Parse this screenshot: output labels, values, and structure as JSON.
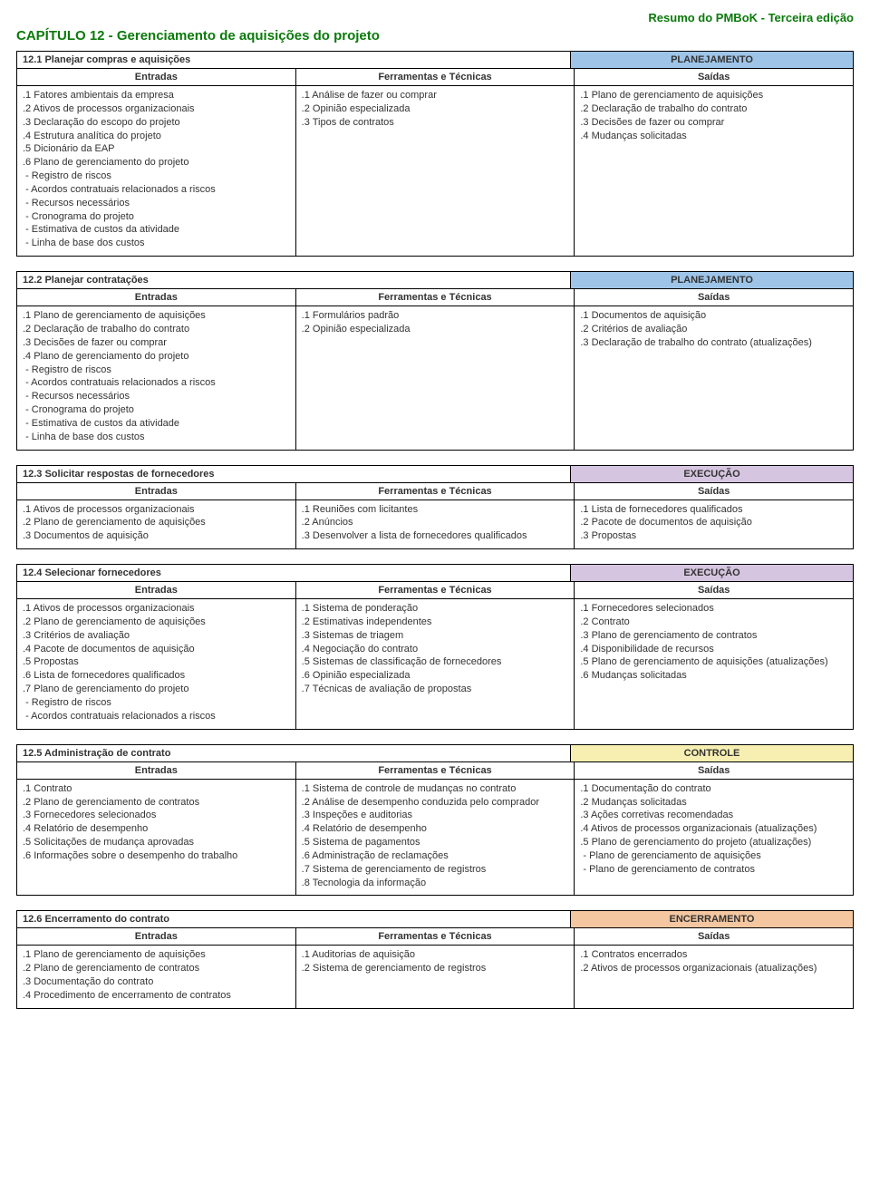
{
  "doc_header": "Resumo do PMBoK - Terceira edição",
  "chapter_title": "CAPÍTULO 12 - Gerenciamento de aquisições do projeto",
  "col_headers": {
    "c1": "Entradas",
    "c2": "Ferramentas e Técnicas",
    "c3": "Saídas"
  },
  "phase_colors": {
    "PLANEJAMENTO": "#9ec5e8",
    "EXECUÇÃO": "#d6c5e0",
    "CONTROLE": "#f7efb2",
    "ENCERRAMENTO": "#f4c7a0"
  },
  "processes": [
    {
      "title": "12.1 Planejar compras e aquisições",
      "phase": "PLANEJAMENTO",
      "entradas": [
        ".1 Fatores ambientais da empresa",
        ".2 Ativos de processos organizacionais",
        ".3 Declaração do escopo do projeto",
        ".4 Estrutura analítica do projeto",
        ".5 Dicionário da EAP",
        ".6 Plano de gerenciamento do projeto",
        " - Registro de riscos",
        " - Acordos contratuais relacionados a riscos",
        " - Recursos necessários",
        " - Cronograma do projeto",
        " - Estimativa de custos da atividade",
        " - Linha de base dos custos"
      ],
      "ferramentas": [
        ".1 Análise de fazer ou comprar",
        ".2 Opinião especializada",
        ".3 Tipos de contratos"
      ],
      "saidas": [
        ".1 Plano de gerenciamento de aquisições",
        ".2 Declaração de trabalho do contrato",
        ".3 Decisões de fazer ou comprar",
        ".4 Mudanças solicitadas"
      ]
    },
    {
      "title": "12.2 Planejar contratações",
      "phase": "PLANEJAMENTO",
      "entradas": [
        ".1 Plano de gerenciamento de aquisições",
        ".2 Declaração de trabalho do contrato",
        ".3 Decisões de fazer ou comprar",
        ".4 Plano de gerenciamento do projeto",
        " - Registro de riscos",
        " - Acordos contratuais relacionados a riscos",
        " - Recursos necessários",
        " - Cronograma do projeto",
        " - Estimativa de custos da atividade",
        " - Linha de base dos custos"
      ],
      "ferramentas": [
        ".1 Formulários padrão",
        ".2 Opinião especializada"
      ],
      "saidas": [
        ".1 Documentos de aquisição",
        ".2 Critérios de avaliação",
        ".3 Declaração de trabalho do contrato (atualizações)"
      ]
    },
    {
      "title": "12.3 Solicitar respostas de fornecedores",
      "phase": "EXECUÇÃO",
      "entradas": [
        ".1 Ativos de processos organizacionais",
        ".2 Plano de gerenciamento de aquisições",
        ".3 Documentos de aquisição"
      ],
      "ferramentas": [
        ".1 Reuniões com licitantes",
        ".2 Anúncios",
        ".3 Desenvolver a lista de fornecedores qualificados"
      ],
      "saidas": [
        ".1 Lista de fornecedores qualificados",
        ".2 Pacote de documentos de aquisição",
        ".3 Propostas"
      ]
    },
    {
      "title": "12.4 Selecionar fornecedores",
      "phase": "EXECUÇÃO",
      "entradas": [
        ".1 Ativos de processos organizacionais",
        ".2 Plano de gerenciamento de aquisições",
        ".3 Critérios de avaliação",
        ".4 Pacote de documentos de aquisição",
        ".5 Propostas",
        ".6 Lista de fornecedores qualificados",
        ".7 Plano de gerenciamento do projeto",
        " - Registro de riscos",
        " - Acordos contratuais relacionados a riscos"
      ],
      "ferramentas": [
        ".1 Sistema de ponderação",
        ".2 Estimativas independentes",
        ".3 Sistemas de triagem",
        ".4 Negociação do contrato",
        ".5 Sistemas de classificação de fornecedores",
        ".6 Opinião especializada",
        ".7 Técnicas de avaliação de propostas"
      ],
      "saidas": [
        ".1 Fornecedores selecionados",
        ".2 Contrato",
        ".3 Plano de gerenciamento de contratos",
        ".4 Disponibilidade de recursos",
        ".5 Plano de gerenciamento de aquisições (atualizações)",
        ".6 Mudanças solicitadas"
      ]
    },
    {
      "title": "12.5 Administração de contrato",
      "phase": "CONTROLE",
      "entradas": [
        ".1 Contrato",
        ".2 Plano de gerenciamento de contratos",
        ".3 Fornecedores selecionados",
        ".4 Relatório de desempenho",
        ".5 Solicitações de mudança aprovadas",
        ".6 Informações sobre o desempenho do trabalho"
      ],
      "ferramentas": [
        ".1 Sistema de controle de mudanças no contrato",
        ".2 Análise de desempenho conduzida pelo comprador",
        ".3 Inspeções e auditorias",
        ".4 Relatório de desempenho",
        ".5 Sistema de pagamentos",
        ".6 Administração de reclamações",
        ".7 Sistema de gerenciamento de registros",
        ".8 Tecnologia da informação"
      ],
      "saidas": [
        ".1 Documentação do contrato",
        ".2 Mudanças solicitadas",
        ".3 Ações corretivas recomendadas",
        ".4 Ativos de processos organizacionais (atualizações)",
        ".5 Plano de gerenciamento do projeto (atualizações)",
        " - Plano de gerenciamento de aquisições",
        " - Plano de gerenciamento de contratos"
      ]
    },
    {
      "title": "12.6 Encerramento do contrato",
      "phase": "ENCERRAMENTO",
      "entradas": [
        ".1 Plano de gerenciamento de aquisições",
        ".2 Plano de gerenciamento de contratos",
        ".3 Documentação do contrato",
        ".4 Procedimento de encerramento de contratos"
      ],
      "ferramentas": [
        ".1 Auditorias de aquisição",
        ".2 Sistema de gerenciamento de registros"
      ],
      "saidas": [
        ".1 Contratos encerrados",
        ".2 Ativos de processos organizacionais (atualizações)"
      ]
    }
  ]
}
